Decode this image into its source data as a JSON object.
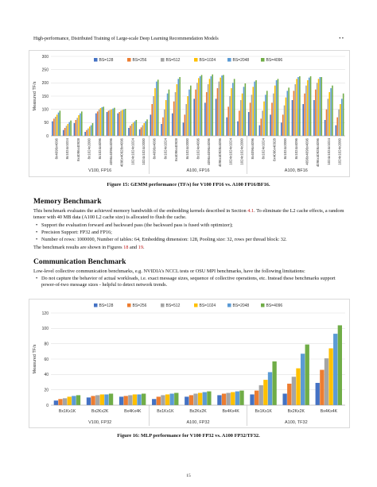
{
  "header": {
    "title": "High-performance, Distributed Training of Large-scale Deep Learning Recommendation Models",
    "right": "• •"
  },
  "chart_data": [
    {
      "type": "bar",
      "ylabel": "Measured TF/s",
      "ylim": [
        0,
        300
      ],
      "yticks": [
        0,
        50,
        100,
        150,
        200,
        250,
        300
      ],
      "legend_position": "top",
      "series": [
        {
          "name": "BS=128",
          "color": "#4472c4"
        },
        {
          "name": "BS=256",
          "color": "#ed7d31"
        },
        {
          "name": "BS=512",
          "color": "#a5a5a5"
        },
        {
          "name": "BS=1024",
          "color": "#ffc000"
        },
        {
          "name": "BS=2048",
          "color": "#5b9bd5"
        },
        {
          "name": "BS=4096",
          "color": "#70ad47"
        }
      ],
      "categories": [
        "8x4096x4096",
        "8x1024x1024",
        "8x4096x40928",
        "8x1024x2000",
        "8x1024x4096",
        "4096x4096x4096",
        "4096x40928x4096",
        "1024x1024x1024",
        "1024x1024x2000",
        "8x4096x4096",
        "8x1024x1024",
        "8x4096x40928",
        "8x1024x2000",
        "8x1024x4096",
        "4096x4096x4096",
        "4096x40928x4096",
        "1024x1024x1024",
        "1024x1024x2000",
        "8x4096x4096",
        "8x1024x1024",
        "8x4096x40928",
        "8x1024x2000",
        "8x1024x4096",
        "4096x4096x4096",
        "4096x40928x4096",
        "1024x1024x1024",
        "1024x1024x2000"
      ],
      "groups": [
        "V100, FP16",
        "A100, FP16",
        "A100, BF16"
      ],
      "values": [
        [
          55,
          65,
          72,
          80,
          88,
          95
        ],
        [
          22,
          30,
          38,
          45,
          52,
          58
        ],
        [
          48,
          60,
          68,
          78,
          85,
          92
        ],
        [
          15,
          22,
          28,
          35,
          40,
          48
        ],
        [
          85,
          92,
          100,
          105,
          108,
          110
        ],
        [
          90,
          95,
          98,
          100,
          103,
          106
        ],
        [
          85,
          90,
          95,
          98,
          100,
          102
        ],
        [
          30,
          38,
          45,
          50,
          55,
          60
        ],
        [
          25,
          32,
          40,
          48,
          55,
          62
        ],
        [
          80,
          120,
          150,
          180,
          205,
          212
        ],
        [
          45,
          70,
          100,
          135,
          160,
          175
        ],
        [
          85,
          130,
          165,
          195,
          215,
          222
        ],
        [
          50,
          80,
          120,
          150,
          175,
          190
        ],
        [
          140,
          175,
          200,
          218,
          225,
          230
        ],
        [
          125,
          165,
          195,
          215,
          225,
          232
        ],
        [
          140,
          180,
          205,
          220,
          228,
          230
        ],
        [
          70,
          110,
          150,
          180,
          200,
          215
        ],
        [
          55,
          95,
          135,
          160,
          185,
          198
        ],
        [
          90,
          125,
          155,
          185,
          205,
          210
        ],
        [
          40,
          65,
          95,
          130,
          155,
          170
        ],
        [
          80,
          125,
          160,
          190,
          210,
          215
        ],
        [
          50,
          80,
          115,
          145,
          170,
          182
        ],
        [
          135,
          170,
          195,
          215,
          222,
          225
        ],
        [
          120,
          160,
          190,
          210,
          220,
          225
        ],
        [
          135,
          175,
          200,
          215,
          222,
          222
        ],
        [
          60,
          100,
          140,
          165,
          180,
          190
        ],
        [
          40,
          70,
          100,
          120,
          140,
          160
        ]
      ]
    },
    {
      "type": "bar",
      "ylabel": "Measured TF/s",
      "ylim": [
        0,
        120
      ],
      "yticks": [
        0,
        20,
        40,
        60,
        80,
        100,
        120
      ],
      "legend_position": "top",
      "series": [
        {
          "name": "BS=128",
          "color": "#4472c4"
        },
        {
          "name": "BS=256",
          "color": "#ed7d31"
        },
        {
          "name": "BS=512",
          "color": "#a5a5a5"
        },
        {
          "name": "BS=1024",
          "color": "#ffc000"
        },
        {
          "name": "BS=2048",
          "color": "#5b9bd5"
        },
        {
          "name": "BS=4096",
          "color": "#70ad47"
        }
      ],
      "categories": [
        "Bx1Kx1K",
        "Bx2Kx2K",
        "Bx4Kx4K",
        "Bx1Kx1K",
        "Bx2Kx2K",
        "Bx4Kx4K",
        "Bx1Kx1K",
        "Bx2Kx2K",
        "Bx4Kx4K"
      ],
      "groups": [
        "V100, FP32",
        "A100, FP32",
        "A100, TF32"
      ],
      "values": [
        [
          6,
          8,
          9,
          11,
          12,
          13
        ],
        [
          10,
          12,
          13,
          14,
          14,
          15
        ],
        [
          11,
          12,
          13,
          14,
          14,
          15
        ],
        [
          8,
          11,
          13,
          14,
          15,
          16
        ],
        [
          11,
          13,
          15,
          16,
          17,
          18
        ],
        [
          13,
          15,
          16,
          17,
          18,
          19
        ],
        [
          14,
          19,
          26,
          33,
          43,
          57
        ],
        [
          15,
          28,
          37,
          48,
          67,
          79
        ],
        [
          29,
          46,
          61,
          74,
          93,
          104
        ]
      ]
    }
  ],
  "figure15_caption": "Figure 15: GEMM performance (TF/s) for V100 FP16 vs. A100 FP16/BF16.",
  "memory": {
    "heading": "Memory Benchmark",
    "para_a": "This benchmark evaluates the achieved memory bandwidth of the embedding kernels described in Section ",
    "para_ref": "4.1",
    "para_b": ". To eliminate the L2 cache effects, a random tensor with 40 MB data (A100 L2 cache size) is allocated to flush the cache.",
    "bullets": [
      "Support the evaluation forward and backward pass (the backward pass is fused with optimizer);",
      "Precision Support: FP32 and FP16;",
      "Number of rows: 1000000, Number of tables: 64, Embedding dimension: 128, Pooling size: 32, rows per thread block: 32."
    ],
    "results_a": "The benchmark results are shown in Figures ",
    "fig_ref1": "18",
    "results_and": " and ",
    "fig_ref2": "19",
    "results_end": "."
  },
  "communication": {
    "heading": "Communication Benchmark",
    "para": "Low-level collective communication benchmarks, e.g. NVIDIA's NCCL tests or OSU MPI benchmarks, have the following limitations:",
    "bullets": [
      "Do not capture the behavior of actual workloads, i.e. exact message sizes, sequence of collective operations, etc. Instead these benchmarks support power-of-two message sizes - helpful to detect network trends."
    ]
  },
  "figure16_caption": "Figure 16: MLP performance for V100 FP32 vs. A100 FP32/TF32.",
  "page_number": "15"
}
